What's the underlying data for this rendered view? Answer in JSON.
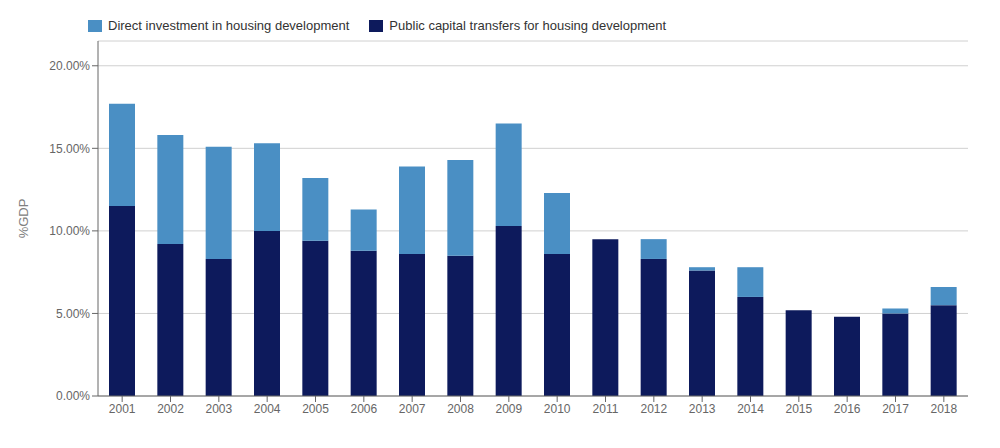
{
  "chart_data": {
    "type": "bar",
    "stacked": true,
    "ylabel": "%GDP",
    "categories": [
      "2001",
      "2002",
      "2003",
      "2004",
      "2005",
      "2006",
      "2007",
      "2008",
      "2009",
      "2010",
      "2011",
      "2012",
      "2013",
      "2014",
      "2015",
      "2016",
      "2017",
      "2018"
    ],
    "series": [
      {
        "name": "Public capital transfers for housing development",
        "color": "#0d1a5c",
        "values": [
          0.115,
          0.092,
          0.083,
          0.1,
          0.094,
          0.088,
          0.086,
          0.085,
          0.103,
          0.086,
          0.095,
          0.083,
          0.076,
          0.06,
          0.052,
          0.048,
          0.05,
          0.055
        ]
      },
      {
        "name": "Direct investment in housing development",
        "color": "#4a8fc4",
        "values": [
          0.062,
          0.066,
          0.068,
          0.053,
          0.038,
          0.025,
          0.053,
          0.058,
          0.062,
          0.037,
          0.0,
          0.012,
          0.002,
          0.018,
          0.0,
          0.0,
          0.003,
          0.011
        ]
      }
    ],
    "ylim": [
      0,
      0.215
    ],
    "yticks": [
      {
        "value": 0.0,
        "label": "0.00%"
      },
      {
        "value": 0.05,
        "label": "5.00%"
      },
      {
        "value": 0.1,
        "label": "10.00%"
      },
      {
        "value": 0.15,
        "label": "15.00%"
      },
      {
        "value": 0.2,
        "label": "20.00%"
      }
    ],
    "grid": true,
    "legend": "upper left"
  }
}
